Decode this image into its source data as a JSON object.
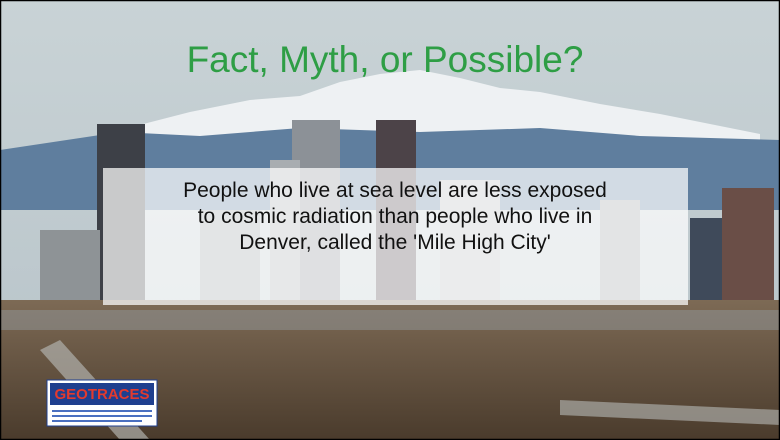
{
  "slide": {
    "title": "Fact, Myth, or Possible?",
    "body": [
      "People who live at sea level are less exposed",
      "to cosmic radiation than people who live in",
      "Denver, called the 'Mile High City'"
    ],
    "logo": "GEOTRACES"
  }
}
